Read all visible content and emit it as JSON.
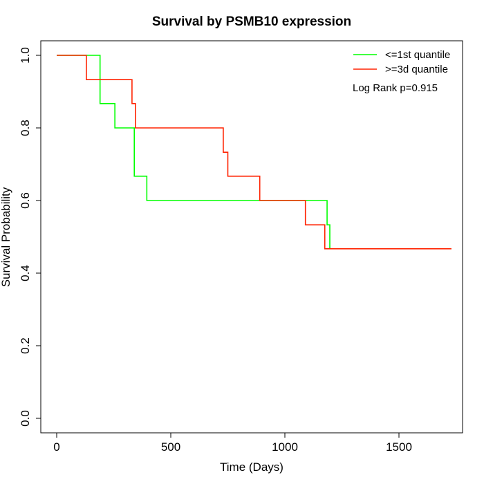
{
  "chart_data": {
    "type": "line",
    "step": true,
    "title": "Survival by PSMB10 expression",
    "xlabel": "Time (Days)",
    "ylabel": "Survival Probability",
    "xlim": [
      0,
      1730
    ],
    "ylim": [
      0,
      1
    ],
    "x_ticks": [
      0,
      500,
      1000,
      1500
    ],
    "x_tick_labels": [
      "0",
      "500",
      "1000",
      "1500"
    ],
    "y_ticks": [
      0,
      0.2,
      0.4,
      0.6,
      0.8,
      1.0
    ],
    "y_tick_labels": [
      "0.0",
      "0.2",
      "0.4",
      "0.6",
      "0.8",
      "1.0"
    ],
    "legend_position": "top-right",
    "annotation": "Log Rank p=0.915",
    "series": [
      {
        "name": "<=1st quantile",
        "color": "#00ff00",
        "x": [
          0,
          180,
          190,
          255,
          340,
          395,
          1185,
          1197
        ],
        "y": [
          1.0,
          1.0,
          0.867,
          0.8,
          0.667,
          0.6,
          0.533,
          0.467
        ]
      },
      {
        "name": ">=3d quantile",
        "color": "#ff2200",
        "x": [
          0,
          130,
          330,
          345,
          730,
          750,
          890,
          1090,
          1175,
          1730
        ],
        "y": [
          1.0,
          0.933,
          0.867,
          0.8,
          0.733,
          0.667,
          0.6,
          0.533,
          0.467,
          0.467
        ]
      }
    ]
  }
}
